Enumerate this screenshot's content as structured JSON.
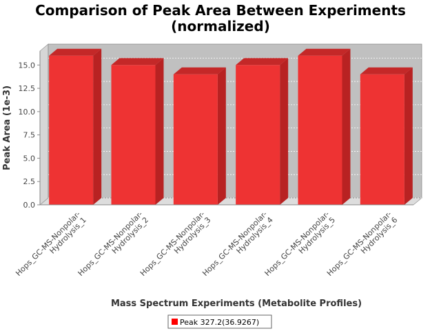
{
  "chart_data": {
    "type": "bar",
    "title": [
      "Comparison of Peak Area Between Experiments",
      "(normalized)"
    ],
    "xlabel": "Mass Spectrum Experiments (Metabolite Profiles)",
    "ylabel": "Peak Area (1e-3)",
    "ylim": [
      0,
      16.5
    ],
    "yticks": [
      "0.0",
      "2.5",
      "5.0",
      "7.5",
      "10.0",
      "12.5",
      "15.0"
    ],
    "categories": [
      [
        "Hops_GC-MS-Nonpolar-",
        "Hydrolysis_1"
      ],
      [
        "Hops_GC-MS-Nonpolar-",
        "Hydrolysis_2"
      ],
      [
        "Hops_GC-MS-Nonpolar-",
        "Hydrolysis_3"
      ],
      [
        "Hops_GC-MS-Nonpolar-",
        "Hydrolysis_4"
      ],
      [
        "Hops_GC-MS-Nonpolar-",
        "Hydrolysis_5"
      ],
      [
        "Hops_GC-MS-Nonpolar-",
        "Hydrolysis_6"
      ]
    ],
    "series": [
      {
        "name": "Peak 327.2(36.9267)",
        "color": "#ee3333",
        "values": [
          16.0,
          15.0,
          14.0,
          15.0,
          16.0,
          14.0
        ]
      }
    ],
    "grid": true,
    "legend": "bottom-center",
    "plot_background": "#c0c0c0"
  }
}
